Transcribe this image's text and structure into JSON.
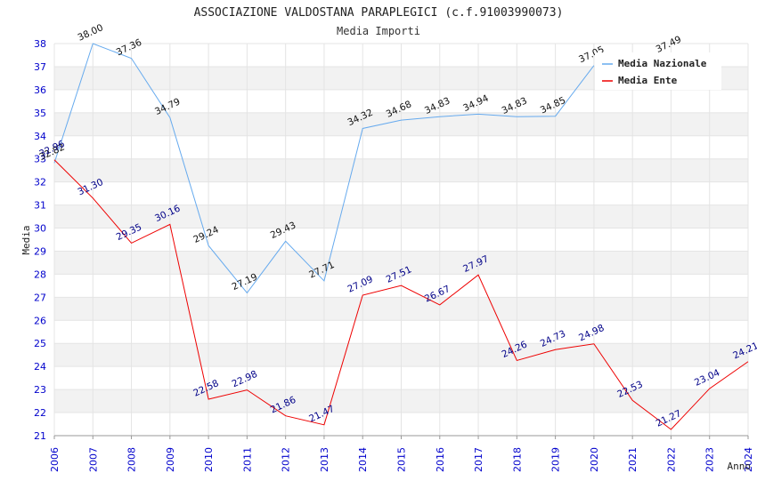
{
  "chart_data": {
    "type": "line",
    "title": "ASSOCIAZIONE VALDOSTANA PARAPLEGICI (c.f.91003990073)",
    "subtitle": "Media Importi",
    "xlabel": "Anno",
    "ylabel": "Media",
    "ylim": [
      21,
      38
    ],
    "categories": [
      "2006",
      "2007",
      "2008",
      "2009",
      "2010",
      "2011",
      "2012",
      "2013",
      "2014",
      "2015",
      "2016",
      "2017",
      "2018",
      "2019",
      "2020",
      "2021",
      "2022",
      "2023",
      "2024"
    ],
    "yticks": [
      "21",
      "22",
      "23",
      "24",
      "25",
      "26",
      "27",
      "28",
      "29",
      "30",
      "31",
      "32",
      "33",
      "34",
      "35",
      "36",
      "37",
      "38"
    ],
    "series": [
      {
        "name": "Media Nazionale",
        "color": "#66aaee",
        "label_color": "#111111",
        "values": [
          32.82,
          38.0,
          37.36,
          34.79,
          29.24,
          27.19,
          29.43,
          27.71,
          34.32,
          34.68,
          34.83,
          34.94,
          34.83,
          34.85,
          37.05,
          null,
          37.49,
          null,
          null
        ],
        "labels": [
          "32.82",
          "38.00",
          "37.36",
          "34.79",
          "29.24",
          "27.19",
          "29.43",
          "27.71",
          "34.32",
          "34.68",
          "34.83",
          "34.94",
          "34.83",
          "34.85",
          "37.05",
          null,
          "37.49",
          null,
          null
        ]
      },
      {
        "name": "Media Ente",
        "color": "#ee0000",
        "label_color": "#000088",
        "values": [
          32.96,
          31.3,
          29.35,
          30.16,
          22.58,
          22.98,
          21.86,
          21.47,
          27.09,
          27.51,
          26.67,
          27.97,
          24.26,
          24.73,
          24.98,
          22.53,
          21.27,
          23.04,
          24.21
        ],
        "labels": [
          "32.96",
          "31.30",
          "29.35",
          "30.16",
          "22.58",
          "22.98",
          "21.86",
          "21.47",
          "27.09",
          "27.51",
          "26.67",
          "27.97",
          "24.26",
          "24.73",
          "24.98",
          "22.53",
          "21.27",
          "23.04",
          "24.21"
        ]
      }
    ],
    "legend_position": "top-right"
  }
}
